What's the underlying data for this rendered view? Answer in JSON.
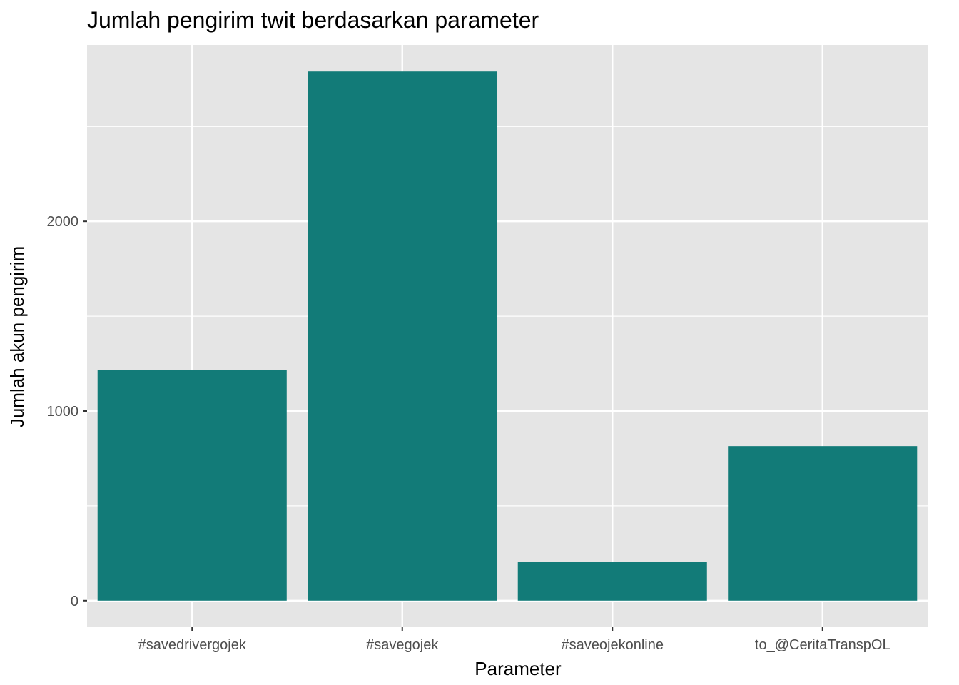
{
  "chart_data": {
    "type": "bar",
    "title": "Jumlah pengirim twit berdasarkan parameter",
    "xlabel": "Parameter",
    "ylabel": "Jumlah akun pengirim",
    "categories": [
      "#savedrivergojek",
      "#savegojek",
      "#saveojekonline",
      "to_@CeritaTranspOL"
    ],
    "values": [
      1215,
      2790,
      205,
      815
    ],
    "ylim": [
      -140,
      2930
    ],
    "yticks": [
      0,
      1000,
      2000
    ],
    "ytick_labels": [
      "0",
      "1000",
      "2000"
    ],
    "grid": true,
    "legend": "none",
    "colors": {
      "bar": "#127b78",
      "panel": "#e5e5e5",
      "grid": "#ffffff",
      "tick_text": "#4d4d4d",
      "tick_mark": "#333333"
    }
  }
}
